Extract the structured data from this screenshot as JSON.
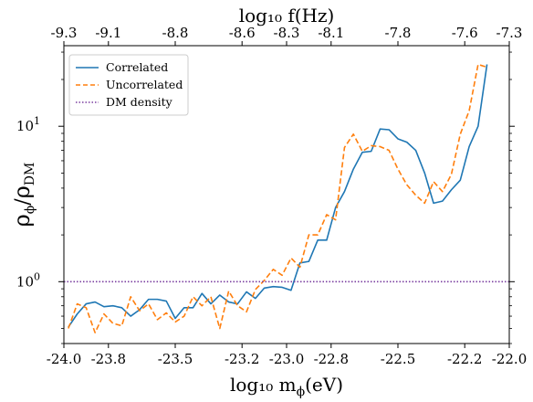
{
  "chart_data": {
    "type": "line",
    "xlabel": "log₁₀ m",
    "xlabel_sub": "ϕ",
    "xlabel_unit": "(eV)",
    "x2label": "log₁₀ f(Hz)",
    "ylabel_num": "ρ",
    "ylabel_num_sub": "ϕ",
    "ylabel_den": "ρ",
    "ylabel_den_sub": "DM",
    "xlim": [
      -24.0,
      -22.0
    ],
    "ylim": [
      0.4,
      33
    ],
    "yscale": "log",
    "grid": false,
    "legend_position": "upper-left",
    "x_ticks": [
      -24.0,
      -23.8,
      -23.5,
      -23.2,
      -23.0,
      -22.8,
      -22.5,
      -22.2,
      -22.0
    ],
    "x_tick_labels": [
      "-24.0",
      "-23.8",
      "-23.5",
      "-23.2",
      "-23.0",
      "-22.8",
      "-22.5",
      "-22.2",
      "-22.0"
    ],
    "x2_tick_labels": [
      "-9.3",
      "-9.1",
      "-8.8",
      "-8.6",
      "-8.3",
      "-8.1",
      "-7.8",
      "-7.6",
      "-7.3"
    ],
    "y_ticks": [
      1,
      10
    ],
    "y_tick_labels": [
      {
        "base": "10",
        "exp": "0"
      },
      {
        "base": "10",
        "exp": "1"
      }
    ],
    "x": [
      -23.98,
      -23.94,
      -23.9,
      -23.86,
      -23.82,
      -23.78,
      -23.74,
      -23.7,
      -23.66,
      -23.62,
      -23.58,
      -23.54,
      -23.5,
      -23.46,
      -23.42,
      -23.38,
      -23.34,
      -23.3,
      -23.26,
      -23.22,
      -23.18,
      -23.14,
      -23.1,
      -23.06,
      -23.02,
      -22.98,
      -22.94,
      -22.9,
      -22.86,
      -22.82,
      -22.78,
      -22.74,
      -22.7,
      -22.66,
      -22.62,
      -22.58,
      -22.54,
      -22.5,
      -22.46,
      -22.42,
      -22.38,
      -22.34,
      -22.3,
      -22.26,
      -22.22,
      -22.18,
      -22.14,
      -22.1,
      -22.06,
      -22.02
    ],
    "series": [
      {
        "name": "Correlated",
        "color": "#1f77b4",
        "dash": "solid",
        "values": [
          0.51,
          0.62,
          0.72,
          0.74,
          0.69,
          0.7,
          0.68,
          0.6,
          0.66,
          0.77,
          0.77,
          0.75,
          0.58,
          0.68,
          0.68,
          0.84,
          0.72,
          0.82,
          0.74,
          0.72,
          0.86,
          0.78,
          0.91,
          0.93,
          0.92,
          0.88,
          1.32,
          1.35,
          1.85,
          1.85,
          3.0,
          3.8,
          5.3,
          6.8,
          6.9,
          9.6,
          9.5,
          8.3,
          7.9,
          7.0,
          5.0,
          3.2,
          3.3,
          3.9,
          4.5,
          7.4,
          10.0,
          25.0,
          null,
          null
        ]
      },
      {
        "name": "Uncorrelated",
        "color": "#ff7f0e",
        "dash": "dashed",
        "values": [
          0.5,
          0.72,
          0.68,
          0.47,
          0.62,
          0.54,
          0.52,
          0.8,
          0.65,
          0.72,
          0.57,
          0.63,
          0.55,
          0.6,
          0.8,
          0.7,
          0.8,
          0.5,
          0.87,
          0.7,
          0.64,
          0.89,
          1.02,
          1.2,
          1.1,
          1.42,
          1.24,
          2.0,
          2.0,
          2.7,
          2.5,
          7.3,
          8.9,
          6.9,
          7.5,
          7.4,
          7.0,
          5.3,
          4.2,
          3.6,
          3.2,
          4.4,
          3.8,
          4.9,
          8.9,
          12.6,
          25.0,
          24.0,
          null,
          null
        ]
      },
      {
        "name": "DM density",
        "color": "#7b3fa0",
        "dash": "dotted",
        "constant": 1.0
      }
    ]
  }
}
